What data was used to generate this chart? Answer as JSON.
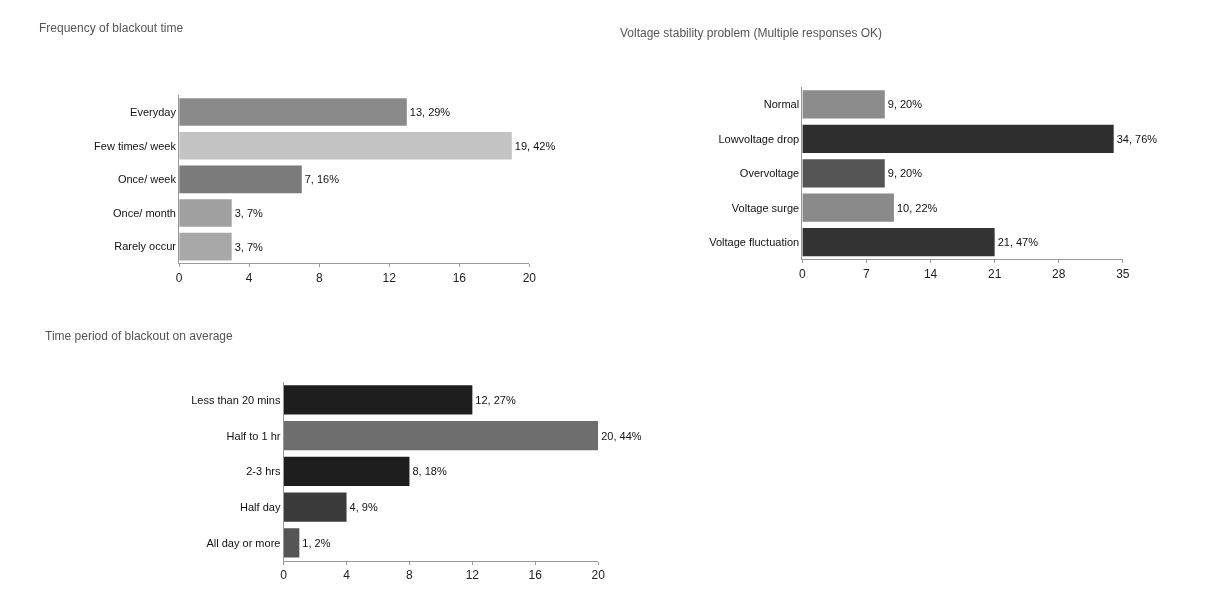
{
  "chart_data": [
    {
      "type": "bar",
      "orientation": "horizontal",
      "title": "Frequency of blackout time",
      "categories": [
        "Everyday",
        "Few times/ week",
        "Once/ week",
        "Once/ month",
        "Rarely occur"
      ],
      "values": [
        13,
        19,
        7,
        3,
        3
      ],
      "colors": [
        "#8a8a8a",
        "#c4c4c4",
        "#7a7a7a",
        "#a0a0a0",
        "#a8a8a8"
      ],
      "value_labels": [
        "13, 29%",
        "19, 42%",
        "7, 16%",
        "3, 7%",
        "3, 7%"
      ],
      "xlim": [
        0,
        20
      ],
      "xticks": [
        0,
        4,
        8,
        12,
        16,
        20
      ]
    },
    {
      "type": "bar",
      "orientation": "horizontal",
      "title": "Voltage stability problem (Multiple responses OK)",
      "categories": [
        "Normal",
        "Lowvoltage drop",
        "Overvoltage",
        "Voltage surge",
        "Voltage fluctuation"
      ],
      "values": [
        9,
        34,
        9,
        10,
        21
      ],
      "colors": [
        "#8c8c8c",
        "#2e2e2e",
        "#555555",
        "#8a8a8a",
        "#333333"
      ],
      "value_labels": [
        "9, 20%",
        "34, 76%",
        "9, 20%",
        "10, 22%",
        "21, 47%"
      ],
      "xlim": [
        0,
        35
      ],
      "xticks": [
        0,
        7,
        14,
        21,
        28,
        35
      ]
    },
    {
      "type": "bar",
      "orientation": "horizontal",
      "title": "Time period of blackout on average",
      "categories": [
        "Less than 20 mins",
        "Half to 1 hr",
        "2-3 hrs",
        "Half day",
        "All day or more"
      ],
      "values": [
        12,
        20,
        8,
        4,
        1
      ],
      "colors": [
        "#1e1e1e",
        "#6e6e6e",
        "#1e1e1e",
        "#3a3a3a",
        "#555555"
      ],
      "value_labels": [
        "12, 27%",
        "20, 44%",
        "8, 18%",
        "4, 9%",
        "1, 2%"
      ],
      "xlim": [
        0,
        20
      ],
      "xticks": [
        0,
        4,
        8,
        12,
        16,
        20
      ]
    }
  ]
}
